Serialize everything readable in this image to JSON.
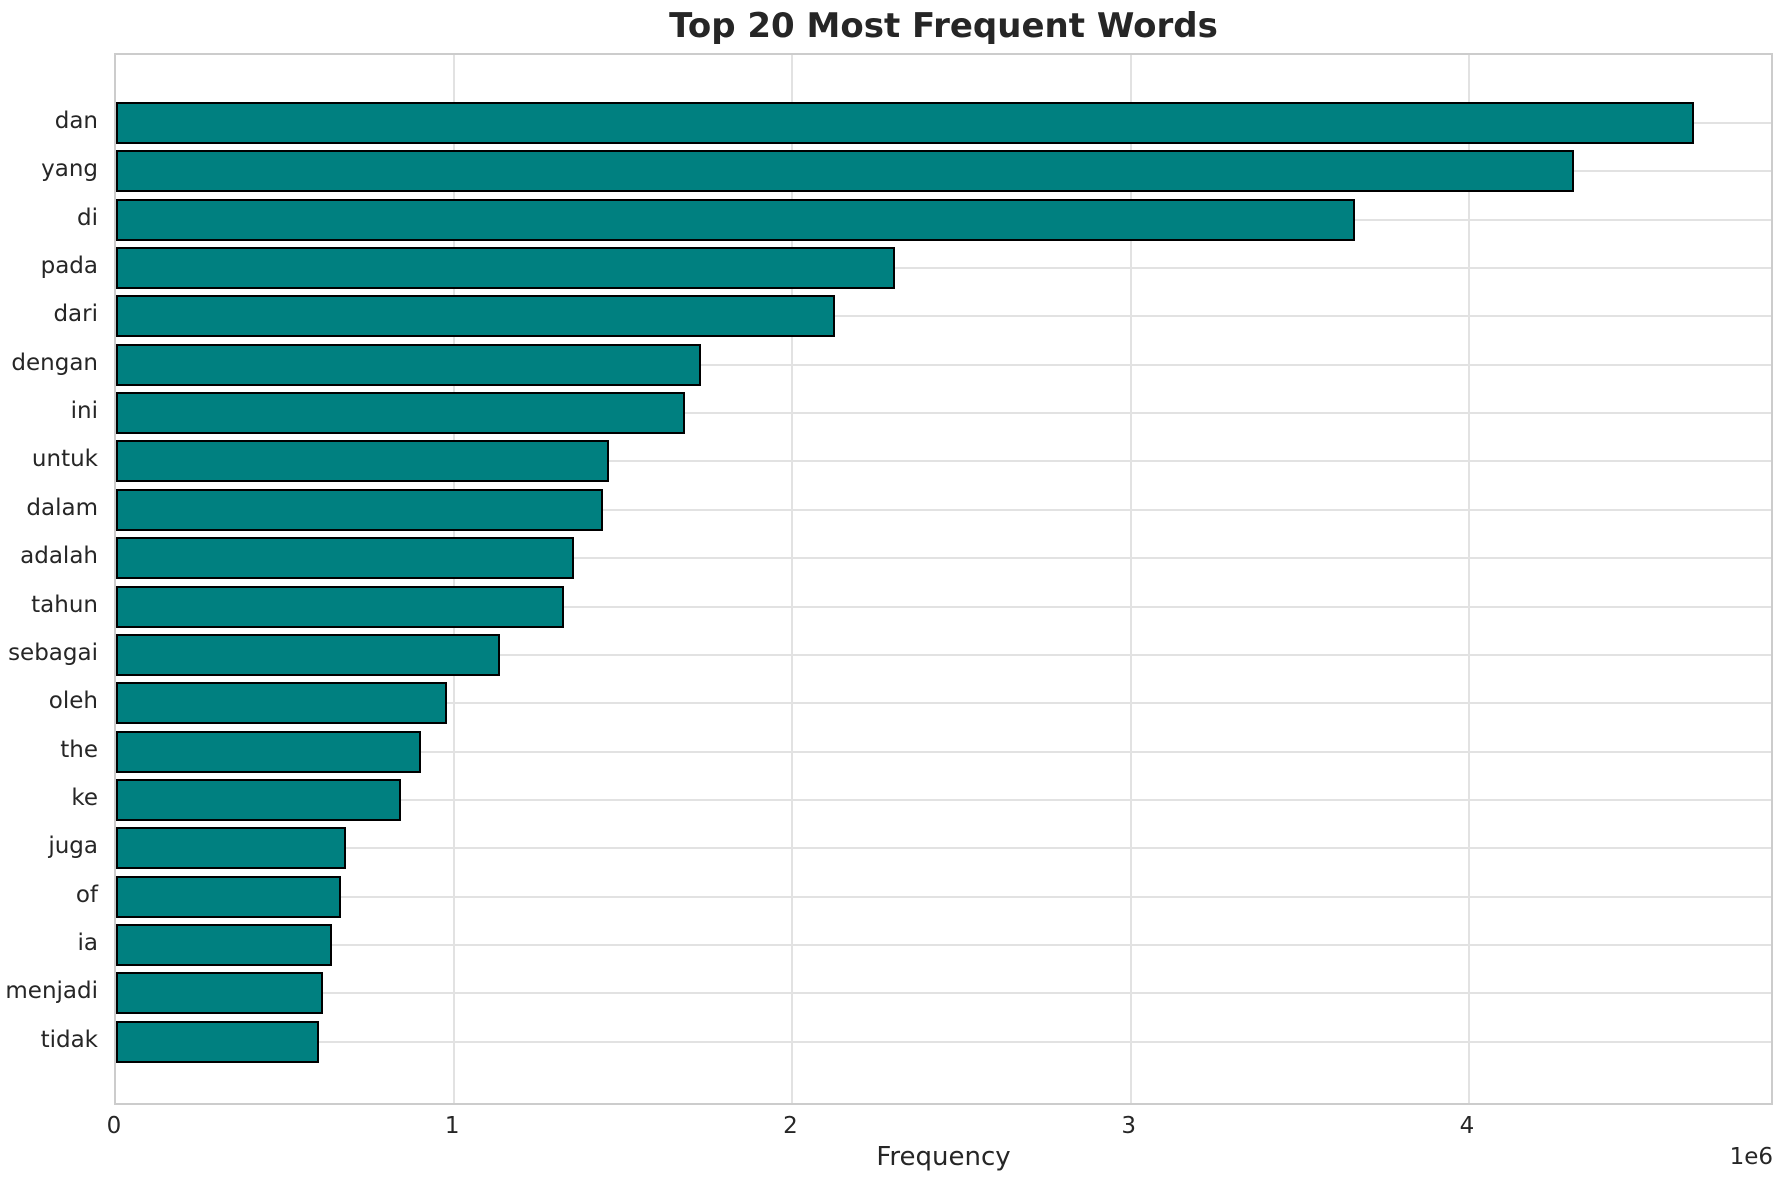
{
  "chart_data": {
    "type": "bar",
    "orientation": "horizontal",
    "title": "Top 20 Most Frequent Words",
    "xlabel": "Frequency",
    "axis_offset_label": "1e6",
    "categories": [
      "dan",
      "yang",
      "di",
      "pada",
      "dari",
      "dengan",
      "ini",
      "untuk",
      "dalam",
      "adalah",
      "tahun",
      "sebagai",
      "oleh",
      "the",
      "ke",
      "juga",
      "of",
      "ia",
      "menjadi",
      "tidak"
    ],
    "values": [
      4665000,
      4310000,
      3663000,
      2303000,
      2126000,
      1730000,
      1682000,
      1458000,
      1440000,
      1353000,
      1324000,
      1136000,
      979000,
      902000,
      843000,
      680000,
      665000,
      639000,
      612000,
      600000
    ],
    "xticks": [
      0,
      1,
      2,
      3,
      4
    ],
    "xtick_labels": [
      "0",
      "1",
      "2",
      "3",
      "4"
    ],
    "xtick_unit": 1000000,
    "xlim": [
      0,
      4905000
    ],
    "grid": "both",
    "legend": "none",
    "colors": {
      "bar_fill": "#008080",
      "bar_edge": "#000000",
      "grid": "#e2e2e2",
      "spine": "#cccccc",
      "text": "#262626"
    }
  }
}
